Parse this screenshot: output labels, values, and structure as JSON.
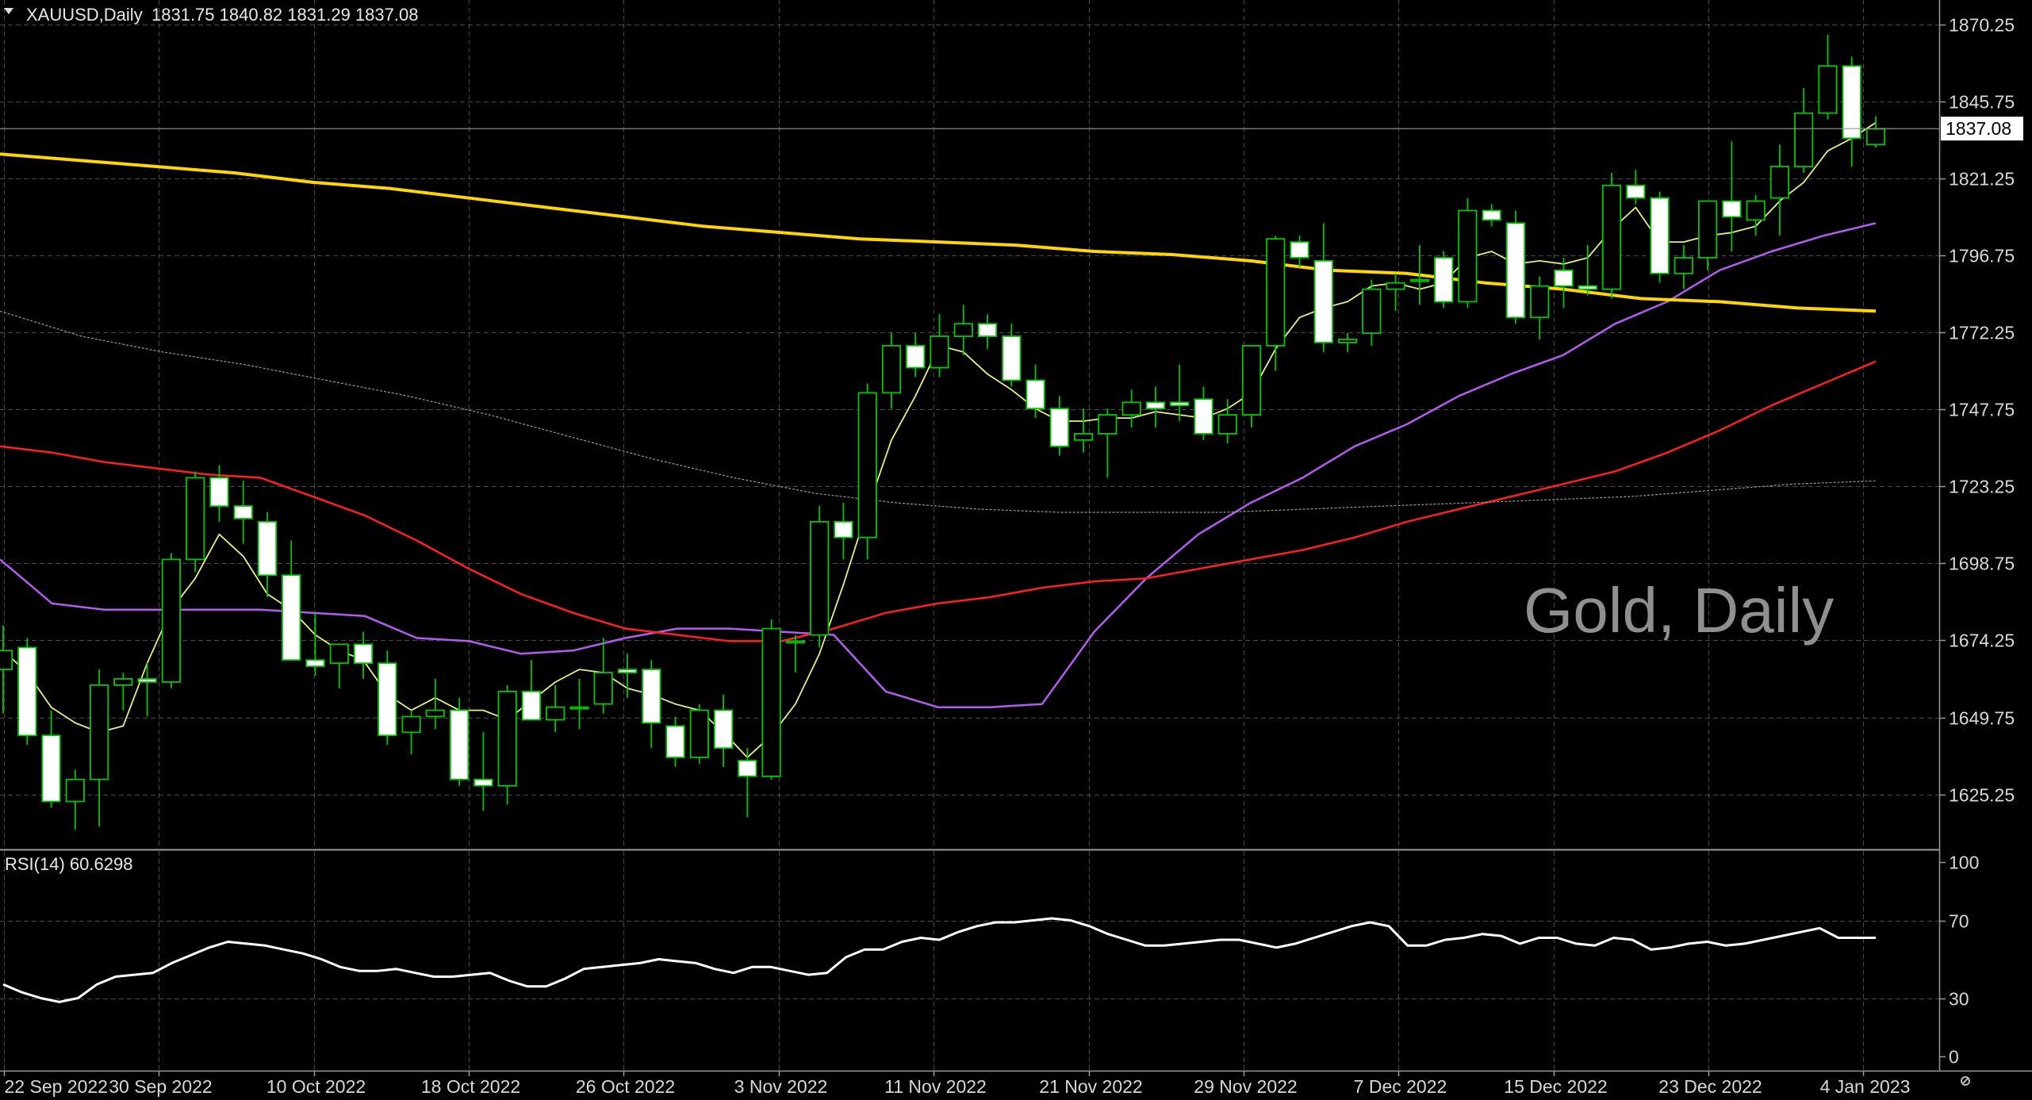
{
  "header": {
    "symbol": "XAUUSD,Daily",
    "ohlc": "1831.75 1840.82 1831.29 1837.08",
    "menu_icon": "triangle-down-icon"
  },
  "watermark": "Gold, Daily",
  "rsi_panel": {
    "label": "RSI(14) 60.6298",
    "ticks": [
      "100",
      "70",
      "30",
      "0"
    ]
  },
  "logo": "icon-logo",
  "colors": {
    "background": "#000000",
    "grid": "#4a4a4a",
    "bull_candle": "#000000",
    "bear_candle": "#ffffff",
    "candle_outline": "#00c800",
    "ma_fast": "#e6f07a",
    "ma_medium": "#b45cf0",
    "ma_slow": "#ff2020",
    "ma_200": "#ffd700",
    "ma_100": "#9a9a9a",
    "rsi": "#ffffff",
    "price_tag_bg": "#ffffff"
  },
  "chart_data": [
    {
      "type": "candlestick",
      "title": "XAUUSD,Daily",
      "price_axis_ticks": [
        1870.25,
        1845.75,
        1821.25,
        1796.75,
        1772.25,
        1747.75,
        1723.25,
        1698.75,
        1674.25,
        1649.75,
        1625.25
      ],
      "price_axis_labels": [
        "1870.25",
        "1845.75",
        "1821.25",
        "1796.75",
        "1772.25",
        "1747.75",
        "1723.25",
        "1698.75",
        "1674.25",
        "1649.75",
        "1625.25"
      ],
      "ylim": [
        1608,
        1878
      ],
      "current_price": "1837.08",
      "date_labels": [
        "22 Sep 2022",
        "30 Sep 2022",
        "10 Oct 2022",
        "18 Oct 2022",
        "26 Oct 2022",
        "3 Nov 2022",
        "11 Nov 2022",
        "21 Nov 2022",
        "29 Nov 2022",
        "7 Dec 2022",
        "15 Dec 2022",
        "23 Dec 2022",
        "4 Jan 2023"
      ],
      "ohlc": [
        [
          1665.0,
          1679.0,
          1651.0,
          1671.0
        ],
        [
          1672.0,
          1675.0,
          1641.0,
          1644.0
        ],
        [
          1644.0,
          1652.0,
          1621.0,
          1623.0
        ],
        [
          1623.0,
          1633.0,
          1614.0,
          1630.0
        ],
        [
          1630.0,
          1665.0,
          1615.0,
          1660.0
        ],
        [
          1660.0,
          1664.0,
          1652.0,
          1662.0
        ],
        [
          1662.0,
          1667.0,
          1650.0,
          1661.0
        ],
        [
          1661.0,
          1702.0,
          1659.0,
          1700.0
        ],
        [
          1700.0,
          1728.0,
          1696.0,
          1726.0
        ],
        [
          1726.0,
          1730.0,
          1712.0,
          1717.0
        ],
        [
          1717.0,
          1725.0,
          1705.0,
          1713.0
        ],
        [
          1712.0,
          1715.0,
          1688.0,
          1695.0
        ],
        [
          1695.0,
          1706.0,
          1668.0,
          1668.0
        ],
        [
          1668.0,
          1683.0,
          1663.0,
          1666.0
        ],
        [
          1667.0,
          1673.0,
          1659.0,
          1673.0
        ],
        [
          1673.0,
          1677.0,
          1662.0,
          1667.0
        ],
        [
          1667.0,
          1671.0,
          1641.0,
          1644.0
        ],
        [
          1645.0,
          1652.0,
          1638.0,
          1650.0
        ],
        [
          1650.0,
          1662.0,
          1646.0,
          1652.0
        ],
        [
          1652.0,
          1656.0,
          1628.0,
          1630.0
        ],
        [
          1630.0,
          1645.0,
          1620.0,
          1628.0
        ],
        [
          1628.0,
          1660.0,
          1622.0,
          1658.0
        ],
        [
          1658.0,
          1668.0,
          1650.0,
          1649.0
        ],
        [
          1649.0,
          1660.0,
          1645.0,
          1653.0
        ],
        [
          1653.0,
          1662.0,
          1646.0,
          1653.0
        ],
        [
          1654.0,
          1675.0,
          1651.0,
          1664.0
        ],
        [
          1665.0,
          1670.0,
          1656.0,
          1664.0
        ],
        [
          1665.0,
          1668.0,
          1640.0,
          1648.0
        ],
        [
          1647.0,
          1650.0,
          1634.0,
          1637.0
        ],
        [
          1637.0,
          1654.0,
          1635.0,
          1652.0
        ],
        [
          1652.0,
          1657.0,
          1634.0,
          1640.0
        ],
        [
          1636.0,
          1640.0,
          1618.0,
          1631.0
        ],
        [
          1631.0,
          1681.0,
          1630.0,
          1678.0
        ],
        [
          1674.0,
          1676.0,
          1664.0,
          1674.0
        ],
        [
          1676.0,
          1717.0,
          1672.0,
          1712.0
        ],
        [
          1712.0,
          1718.0,
          1700.0,
          1707.0
        ],
        [
          1707.0,
          1756.0,
          1700.0,
          1753.0
        ],
        [
          1753.0,
          1772.0,
          1748.0,
          1768.0
        ],
        [
          1768.0,
          1772.0,
          1758.0,
          1761.0
        ],
        [
          1761.0,
          1778.0,
          1758.0,
          1771.0
        ],
        [
          1771.0,
          1781.0,
          1765.0,
          1775.0
        ],
        [
          1775.0,
          1778.0,
          1767.0,
          1771.0
        ],
        [
          1771.0,
          1775.0,
          1755.0,
          1757.0
        ],
        [
          1757.0,
          1762.0,
          1745.0,
          1748.0
        ],
        [
          1748.0,
          1752.0,
          1733.0,
          1736.0
        ],
        [
          1738.0,
          1748.0,
          1734.0,
          1740.0
        ],
        [
          1740.0,
          1748.0,
          1726.0,
          1746.0
        ],
        [
          1746.0,
          1754.0,
          1742.0,
          1750.0
        ],
        [
          1750.0,
          1755.0,
          1742.0,
          1748.0
        ],
        [
          1750.0,
          1762.0,
          1744.0,
          1749.0
        ],
        [
          1751.0,
          1755.0,
          1738.0,
          1740.0
        ],
        [
          1740.0,
          1751.0,
          1737.0,
          1746.0
        ],
        [
          1746.0,
          1768.0,
          1742.0,
          1768.0
        ],
        [
          1768.0,
          1803.0,
          1760.0,
          1802.0
        ],
        [
          1801.0,
          1803.0,
          1793.0,
          1796.0
        ],
        [
          1795.0,
          1807.0,
          1766.0,
          1769.0
        ],
        [
          1769.0,
          1772.0,
          1766.0,
          1770.0
        ],
        [
          1772.0,
          1789.0,
          1768.0,
          1786.0
        ],
        [
          1786.0,
          1791.0,
          1779.0,
          1788.0
        ],
        [
          1789.0,
          1800.0,
          1781.0,
          1789.0
        ],
        [
          1796.0,
          1798.0,
          1780.0,
          1782.0
        ],
        [
          1782.0,
          1815.0,
          1780.0,
          1811.0
        ],
        [
          1811.0,
          1813.0,
          1806.0,
          1808.0
        ],
        [
          1807.0,
          1811.0,
          1775.0,
          1777.0
        ],
        [
          1777.0,
          1790.0,
          1770.0,
          1787.0
        ],
        [
          1792.0,
          1796.0,
          1780.0,
          1787.0
        ],
        [
          1787.0,
          1800.0,
          1784.0,
          1786.0
        ],
        [
          1786.0,
          1823.0,
          1783.0,
          1819.0
        ],
        [
          1819.0,
          1824.0,
          1813.0,
          1815.0
        ],
        [
          1815.0,
          1817.0,
          1788.0,
          1791.0
        ],
        [
          1791.0,
          1800.0,
          1786.0,
          1796.0
        ],
        [
          1796.0,
          1813.0,
          1792.0,
          1814.0
        ],
        [
          1814.0,
          1833.0,
          1798.0,
          1809.0
        ],
        [
          1808.0,
          1816.0,
          1803.0,
          1814.0
        ],
        [
          1815.0,
          1832.0,
          1803.0,
          1825.0
        ],
        [
          1825.0,
          1850.0,
          1823.0,
          1842.0
        ],
        [
          1842.0,
          1867.0,
          1840.0,
          1857.0
        ],
        [
          1857.0,
          1860.0,
          1825.0,
          1834.0
        ],
        [
          1832.0,
          1841.0,
          1831.0,
          1837.0
        ]
      ],
      "series": [
        {
          "period": "ma_fast",
          "values": [
            1671.0,
            1664.0,
            1653.0,
            1648.0,
            1645.0,
            1647.0,
            1667.0,
            1684.0,
            1694.0,
            1708.0,
            1701.0,
            1689.0,
            1684.0,
            1676.0,
            1671.0,
            1668.0,
            1657.0,
            1652.0,
            1656.0,
            1652.0,
            1652.0,
            1649.0,
            1655.0,
            1661.0,
            1665.0,
            1664.0,
            1659.0,
            1657.0,
            1654.0,
            1652.0,
            1645.0,
            1637.0,
            1644.0,
            1654.0,
            1670.0,
            1692.0,
            1716.0,
            1738.0,
            1752.0,
            1768.0,
            1766.0,
            1759.0,
            1754.0,
            1748.0,
            1744.0,
            1744.0,
            1745.0,
            1745.0,
            1747.0,
            1746.0,
            1745.0,
            1748.0,
            1753.0,
            1767.0,
            1777.0,
            1780.0,
            1782.0,
            1787.0,
            1788.0,
            1786.0,
            1788.0,
            1796.0,
            1798.0,
            1794.0,
            1795.0,
            1794.0,
            1796.0,
            1805.0,
            1812.0,
            1801.0,
            1801.0,
            1803.0,
            1804.0,
            1806.0,
            1814.0,
            1820.0,
            1830.0,
            1834.0,
            1839.0
          ]
        },
        {
          "period": "ma_medium",
          "values": [
            1700.0,
            1686.0,
            1684.0,
            1684.0,
            1684.0,
            1684.0,
            1683.0,
            1682.0,
            1675.0,
            1674.0,
            1670.0,
            1671.0,
            1675.0,
            1678.0,
            1678.0,
            1677.0,
            1676.0,
            1658.0,
            1653.0,
            1653.0,
            1654.0,
            1677.0,
            1694.0,
            1708.0,
            1718.0,
            1726.0,
            1736.0,
            1743.0,
            1752.0,
            1759.0,
            1765.0,
            1775.0,
            1782.0,
            1792.0,
            1798.0,
            1803.0,
            1807.0
          ]
        },
        {
          "period": "ma_slow",
          "values": [
            1736.0,
            1734.0,
            1731.0,
            1729.0,
            1727.0,
            1726.0,
            1720.0,
            1714.0,
            1706.0,
            1697.0,
            1689.0,
            1683.0,
            1678.0,
            1676.0,
            1674.0,
            1674.0,
            1678.0,
            1683.0,
            1686.0,
            1688.0,
            1691.0,
            1693.0,
            1694.0,
            1697.0,
            1700.0,
            1703.0,
            1707.0,
            1712.0,
            1716.0,
            1720.0,
            1724.0,
            1728.0,
            1734.0,
            1741.0,
            1749.0,
            1756.0,
            1763.0
          ]
        },
        {
          "period": "ma_200",
          "values": [
            1829.0,
            1827.0,
            1825.0,
            1823.0,
            1820.0,
            1818.0,
            1815.0,
            1812.0,
            1809.0,
            1806.0,
            1804.0,
            1802.0,
            1801.0,
            1800.0,
            1798.0,
            1797.0,
            1795.0,
            1792.0,
            1791.0,
            1788.0,
            1786.0,
            1783.0,
            1782.0,
            1780.0,
            1779.0
          ]
        },
        {
          "period": "ma_100",
          "values": [
            1779.0,
            1771.0,
            1766.0,
            1762.0,
            1757.0,
            1752.0,
            1746.0,
            1739.0,
            1732.0,
            1726.0,
            1721.0,
            1718.0,
            1716.0,
            1715.0,
            1715.0,
            1715.0,
            1716.0,
            1717.0,
            1718.0,
            1719.0,
            1720.0,
            1722.0,
            1724.0,
            1725.0
          ]
        }
      ]
    },
    {
      "type": "line",
      "title": "RSI(14) 60.6298",
      "ylim": [
        0,
        100
      ],
      "ticks": [
        100,
        70,
        30,
        0
      ],
      "series": [
        {
          "values": [
            37.0,
            33.0,
            30.0,
            28.0,
            30.0,
            37.0,
            41.0,
            42.0,
            43.0,
            48.0,
            52.0,
            56.0,
            59.0,
            58.0,
            57.0,
            55.0,
            53.0,
            50.0,
            46.0,
            44.0,
            44.0,
            45.0,
            43.0,
            41.0,
            41.0,
            42.0,
            43.0,
            39.0,
            36.0,
            36.0,
            40.0,
            45.0,
            46.0,
            47.0,
            48.0,
            50.0,
            49.0,
            48.0,
            45.0,
            43.0,
            46.0,
            46.0,
            44.0,
            42.0,
            43.0,
            51.0,
            55.0,
            55.0,
            59.0,
            61.0,
            60.0,
            64.0,
            67.0,
            69.0,
            69.0,
            70.0,
            71.0,
            70.0,
            67.0,
            63.0,
            60.0,
            57.0,
            57.0,
            58.0,
            59.0,
            60.0,
            60.0,
            58.0,
            56.0,
            58.0,
            61.0,
            64.0,
            67.0,
            69.0,
            67.0,
            57.0,
            57.0,
            60.0,
            61.0,
            63.0,
            62.0,
            58.0,
            61.0,
            61.0,
            58.0,
            57.0,
            61.0,
            60.0,
            55.0,
            56.0,
            58.0,
            59.0,
            57.0,
            58.0,
            60.0,
            62.0,
            64.0,
            66.0,
            61.0,
            61.0,
            61.0
          ]
        }
      ]
    }
  ]
}
